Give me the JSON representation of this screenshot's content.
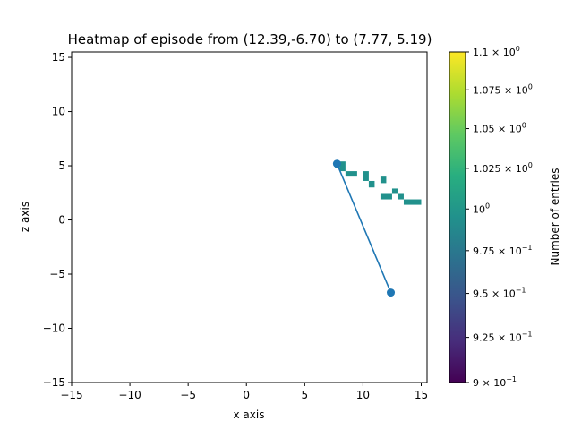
{
  "chart_data": {
    "type": "heatmap",
    "title": "Heatmap of episode from (12.39,-6.70) to (7.77, 5.19)",
    "xlabel": "x axis",
    "ylabel": "z axis",
    "xlim": [
      -15,
      15.5
    ],
    "ylim": [
      -15,
      15.5
    ],
    "xticks": [
      -15,
      -10,
      -5,
      0,
      5,
      10,
      15
    ],
    "xtick_labels": [
      "−15",
      "−10",
      "−5",
      "0",
      "5",
      "10",
      "15"
    ],
    "yticks": [
      -15,
      -10,
      -5,
      0,
      5,
      10,
      15
    ],
    "ytick_labels": [
      "−15",
      "−10",
      "−5",
      "0",
      "5",
      "10",
      "15"
    ],
    "grid": false,
    "cells": [
      {
        "x": [
          7.6,
          8.0
        ],
        "z": [
          4.8,
          5.4
        ],
        "count": 1
      },
      {
        "x": [
          8.0,
          8.5
        ],
        "z": [
          4.5,
          5.4
        ],
        "count": 1
      },
      {
        "x": [
          8.5,
          9.5
        ],
        "z": [
          4.0,
          4.5
        ],
        "count": 1
      },
      {
        "x": [
          10.0,
          10.5
        ],
        "z": [
          3.6,
          4.5
        ],
        "count": 1
      },
      {
        "x": [
          10.5,
          11.0
        ],
        "z": [
          3.0,
          3.6
        ],
        "count": 1
      },
      {
        "x": [
          11.5,
          12.0
        ],
        "z": [
          3.4,
          4.0
        ],
        "count": 1
      },
      {
        "x": [
          11.5,
          12.5
        ],
        "z": [
          1.9,
          2.4
        ],
        "count": 1
      },
      {
        "x": [
          12.5,
          13.0
        ],
        "z": [
          2.4,
          2.9
        ],
        "count": 1
      },
      {
        "x": [
          13.0,
          13.5
        ],
        "z": [
          1.9,
          2.4
        ],
        "count": 1
      },
      {
        "x": [
          13.5,
          15.0
        ],
        "z": [
          1.4,
          1.9
        ],
        "count": 1
      }
    ],
    "cell_color": "#21918c",
    "path": {
      "color": "#1f77b4",
      "points": [
        {
          "x": 12.39,
          "z": -6.7
        },
        {
          "x": 7.77,
          "z": 5.19
        }
      ]
    },
    "colorbar": {
      "label": "Number of entries",
      "scale": "log",
      "range": [
        0.9,
        1.1
      ],
      "colormap": "viridis",
      "ticks": [
        {
          "value": 0.9,
          "parts": [
            {
              "t": "9",
              "sup": false
            },
            {
              "t": " × 10",
              "sup": false
            },
            {
              "t": "−1",
              "sup": true
            }
          ]
        },
        {
          "value": 0.925,
          "parts": [
            {
              "t": "9.25",
              "sup": false
            },
            {
              "t": " × 10",
              "sup": false
            },
            {
              "t": "−1",
              "sup": true
            }
          ]
        },
        {
          "value": 0.95,
          "parts": [
            {
              "t": "9.5",
              "sup": false
            },
            {
              "t": " × 10",
              "sup": false
            },
            {
              "t": "−1",
              "sup": true
            }
          ]
        },
        {
          "value": 0.975,
          "parts": [
            {
              "t": "9.75",
              "sup": false
            },
            {
              "t": " × 10",
              "sup": false
            },
            {
              "t": "−1",
              "sup": true
            }
          ]
        },
        {
          "value": 1.0,
          "parts": [
            {
              "t": "10",
              "sup": false
            },
            {
              "t": "0",
              "sup": true
            }
          ]
        },
        {
          "value": 1.025,
          "parts": [
            {
              "t": "1.025",
              "sup": false
            },
            {
              "t": " × 10",
              "sup": false
            },
            {
              "t": "0",
              "sup": true
            }
          ]
        },
        {
          "value": 1.05,
          "parts": [
            {
              "t": "1.05",
              "sup": false
            },
            {
              "t": " × 10",
              "sup": false
            },
            {
              "t": "0",
              "sup": true
            }
          ]
        },
        {
          "value": 1.075,
          "parts": [
            {
              "t": "1.075",
              "sup": false
            },
            {
              "t": " × 10",
              "sup": false
            },
            {
              "t": "0",
              "sup": true
            }
          ]
        },
        {
          "value": 1.1,
          "parts": [
            {
              "t": "1.1",
              "sup": false
            },
            {
              "t": " × 10",
              "sup": false
            },
            {
              "t": "0",
              "sup": true
            }
          ]
        }
      ]
    }
  }
}
